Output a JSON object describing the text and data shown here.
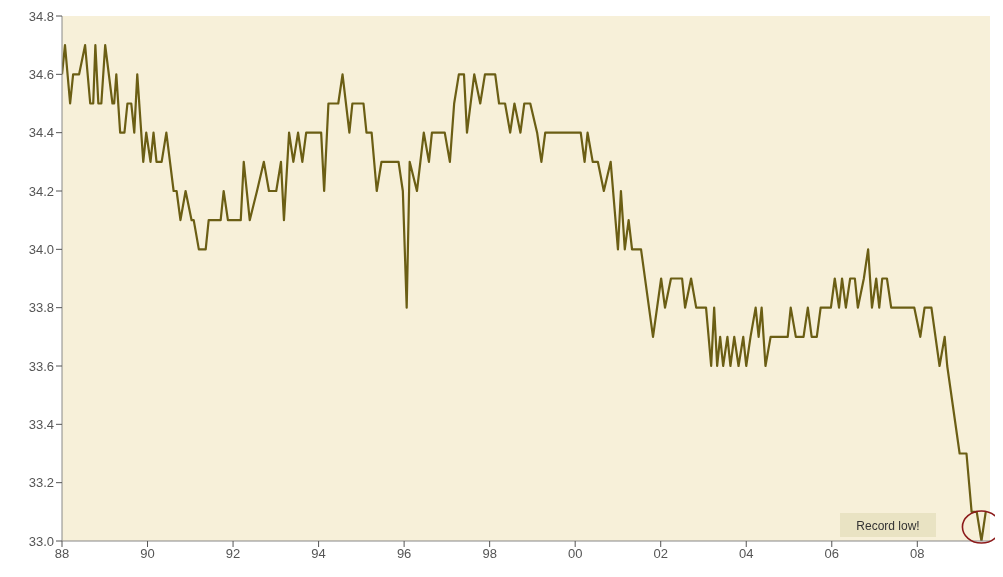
{
  "chart_data": {
    "type": "line",
    "marker": "none",
    "line_style": "solid",
    "xlim": [
      1988,
      2009.7
    ],
    "xticks": [
      {
        "value": 1988,
        "label": "88"
      },
      {
        "value": 1990,
        "label": "90"
      },
      {
        "value": 1992,
        "label": "92"
      },
      {
        "value": 1994,
        "label": "94"
      },
      {
        "value": 1996,
        "label": "96"
      },
      {
        "value": 1998,
        "label": "98"
      },
      {
        "value": 2000,
        "label": "00"
      },
      {
        "value": 2002,
        "label": "02"
      },
      {
        "value": 2004,
        "label": "04"
      },
      {
        "value": 2006,
        "label": "06"
      },
      {
        "value": 2008,
        "label": "08"
      }
    ],
    "ylim": [
      33,
      34.8
    ],
    "yticks": [
      {
        "value": 33,
        "label": "33.0"
      },
      33.2,
      33.4,
      33.6,
      33.8,
      {
        "value": 34,
        "label": "34.0"
      },
      34.2,
      34.4,
      34.6,
      34.8
    ],
    "series": [
      {
        "color": "#6b5e14",
        "x": [
          1988.0,
          1988.07,
          1988.19,
          1988.26,
          1988.4,
          1988.54,
          1988.66,
          1988.73,
          1988.78,
          1988.85,
          1988.92,
          1989.01,
          1989.18,
          1989.22,
          1989.27,
          1989.36,
          1989.46,
          1989.53,
          1989.62,
          1989.69,
          1989.76,
          1989.9,
          1989.97,
          1990.07,
          1990.14,
          1990.21,
          1990.33,
          1990.44,
          1990.61,
          1990.68,
          1990.77,
          1990.89,
          1991.03,
          1991.08,
          1991.2,
          1991.36,
          1991.43,
          1991.71,
          1991.78,
          1991.88,
          1992.18,
          1992.25,
          1992.39,
          1992.56,
          1992.72,
          1992.84,
          1993.01,
          1993.12,
          1993.19,
          1993.31,
          1993.41,
          1993.52,
          1993.62,
          1993.71,
          1994.06,
          1994.13,
          1994.23,
          1994.46,
          1994.56,
          1994.72,
          1994.79,
          1995.05,
          1995.12,
          1995.24,
          1995.36,
          1995.47,
          1995.87,
          1995.97,
          1996.06,
          1996.13,
          1996.3,
          1996.46,
          1996.58,
          1996.65,
          1996.95,
          1997.07,
          1997.17,
          1997.28,
          1997.4,
          1997.47,
          1997.64,
          1997.78,
          1997.89,
          1998.13,
          1998.22,
          1998.36,
          1998.48,
          1998.58,
          1998.72,
          1998.81,
          1998.95,
          1999.11,
          1999.21,
          1999.3,
          2000.13,
          2000.22,
          2000.29,
          2000.41,
          2000.53,
          2000.67,
          2000.83,
          2001.0,
          2001.07,
          2001.16,
          2001.25,
          2001.33,
          2001.54,
          2001.82,
          2002.01,
          2002.1,
          2002.24,
          2002.5,
          2002.57,
          2002.71,
          2002.83,
          2003.06,
          2003.18,
          2003.25,
          2003.32,
          2003.39,
          2003.46,
          2003.56,
          2003.63,
          2003.72,
          2003.82,
          2003.93,
          2004.0,
          2004.1,
          2004.22,
          2004.29,
          2004.36,
          2004.45,
          2004.57,
          2004.97,
          2005.04,
          2005.16,
          2005.34,
          2005.44,
          2005.53,
          2005.65,
          2005.74,
          2005.98,
          2006.07,
          2006.17,
          2006.24,
          2006.33,
          2006.43,
          2006.54,
          2006.61,
          2006.75,
          2006.85,
          2006.94,
          2007.04,
          2007.11,
          2007.18,
          2007.29,
          2007.39,
          2007.93,
          2008.07,
          2008.17,
          2008.33,
          2008.52,
          2008.64,
          2008.7,
          2008.99,
          2009.15,
          2009.27,
          2009.39,
          2009.5,
          2009.6
        ],
        "values": [
          34.6,
          34.7,
          34.5,
          34.6,
          34.6,
          34.7,
          34.5,
          34.5,
          34.7,
          34.5,
          34.5,
          34.7,
          34.5,
          34.5,
          34.6,
          34.4,
          34.4,
          34.5,
          34.5,
          34.4,
          34.6,
          34.3,
          34.4,
          34.3,
          34.4,
          34.3,
          34.3,
          34.4,
          34.2,
          34.2,
          34.1,
          34.2,
          34.1,
          34.1,
          34.0,
          34.0,
          34.1,
          34.1,
          34.2,
          34.1,
          34.1,
          34.3,
          34.1,
          34.2,
          34.3,
          34.2,
          34.2,
          34.3,
          34.1,
          34.4,
          34.3,
          34.4,
          34.3,
          34.4,
          34.4,
          34.2,
          34.5,
          34.5,
          34.6,
          34.4,
          34.5,
          34.5,
          34.4,
          34.4,
          34.2,
          34.3,
          34.3,
          34.2,
          33.8,
          34.3,
          34.2,
          34.4,
          34.3,
          34.4,
          34.4,
          34.3,
          34.5,
          34.6,
          34.6,
          34.4,
          34.6,
          34.5,
          34.6,
          34.6,
          34.5,
          34.5,
          34.4,
          34.5,
          34.4,
          34.5,
          34.5,
          34.4,
          34.3,
          34.4,
          34.4,
          34.3,
          34.4,
          34.3,
          34.3,
          34.2,
          34.3,
          34.0,
          34.2,
          34.0,
          34.1,
          34.0,
          34.0,
          33.7,
          33.9,
          33.8,
          33.9,
          33.9,
          33.8,
          33.9,
          33.8,
          33.8,
          33.6,
          33.8,
          33.6,
          33.7,
          33.6,
          33.7,
          33.6,
          33.7,
          33.6,
          33.7,
          33.6,
          33.7,
          33.8,
          33.7,
          33.8,
          33.6,
          33.7,
          33.7,
          33.8,
          33.7,
          33.7,
          33.8,
          33.7,
          33.7,
          33.8,
          33.8,
          33.9,
          33.8,
          33.9,
          33.8,
          33.9,
          33.9,
          33.8,
          33.9,
          34.0,
          33.8,
          33.9,
          33.8,
          33.9,
          33.9,
          33.8,
          33.8,
          33.7,
          33.8,
          33.8,
          33.6,
          33.7,
          33.6,
          33.3,
          33.3,
          33.1,
          33.1,
          33.0,
          33.1
        ]
      }
    ],
    "annotations": [
      "Record low!"
    ]
  }
}
